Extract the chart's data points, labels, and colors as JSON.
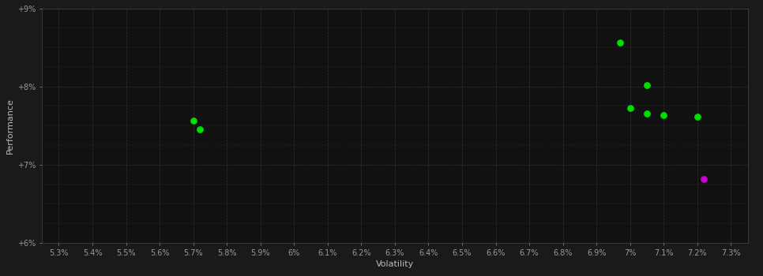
{
  "background_color": "#1a1a1a",
  "plot_bg_color": "#111111",
  "grid_color": "#333333",
  "xlabel": "Volatility",
  "ylabel": "Performance",
  "xlim": [
    5.25,
    7.35
  ],
  "ylim": [
    6.0,
    9.0
  ],
  "ytick_values": [
    6.0,
    7.0,
    8.0,
    9.0
  ],
  "ytick_labels": [
    "+6%",
    "+7%",
    "+8%",
    "+9%"
  ],
  "x_tick_labels": [
    "5.3%",
    "5.4%",
    "5.5%",
    "5.6%",
    "5.7%",
    "5.8%",
    "5.9%",
    "6%",
    "6.1%",
    "6.2%",
    "6.3%",
    "6.4%",
    "6.5%",
    "6.6%",
    "6.7%",
    "6.8%",
    "6.9%",
    "7%",
    "7.1%",
    "7.2%",
    "7.3%"
  ],
  "x_tick_values": [
    5.3,
    5.4,
    5.5,
    5.6,
    5.7,
    5.8,
    5.9,
    6.0,
    6.1,
    6.2,
    6.3,
    6.4,
    6.5,
    6.6,
    6.7,
    6.8,
    6.9,
    7.0,
    7.1,
    7.2,
    7.3
  ],
  "green_points": [
    [
      5.7,
      7.56
    ],
    [
      5.72,
      7.45
    ],
    [
      6.97,
      8.56
    ],
    [
      7.05,
      8.02
    ],
    [
      7.0,
      7.72
    ],
    [
      7.05,
      7.65
    ],
    [
      7.1,
      7.63
    ],
    [
      7.2,
      7.61
    ]
  ],
  "magenta_points": [
    [
      7.22,
      6.82
    ]
  ],
  "dot_size": 28,
  "axis_label_color": "#bbbbbb",
  "tick_color": "#999999",
  "tick_fontsize": 7,
  "label_fontsize": 8
}
